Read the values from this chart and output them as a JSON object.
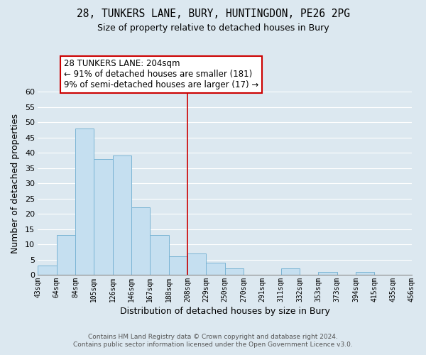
{
  "title": "28, TUNKERS LANE, BURY, HUNTINGDON, PE26 2PG",
  "subtitle": "Size of property relative to detached houses in Bury",
  "xlabel": "Distribution of detached houses by size in Bury",
  "ylabel": "Number of detached properties",
  "bin_labels": [
    "43sqm",
    "64sqm",
    "84sqm",
    "105sqm",
    "126sqm",
    "146sqm",
    "167sqm",
    "188sqm",
    "208sqm",
    "229sqm",
    "250sqm",
    "270sqm",
    "291sqm",
    "311sqm",
    "332sqm",
    "353sqm",
    "373sqm",
    "394sqm",
    "415sqm",
    "435sqm",
    "456sqm"
  ],
  "bar_values": [
    3,
    13,
    48,
    38,
    39,
    22,
    13,
    6,
    7,
    4,
    2,
    0,
    0,
    2,
    0,
    1,
    0,
    1,
    0,
    0
  ],
  "bar_color": "#c5dff0",
  "bar_edge_color": "#7ab4d4",
  "ylim": [
    0,
    60
  ],
  "yticks": [
    0,
    5,
    10,
    15,
    20,
    25,
    30,
    35,
    40,
    45,
    50,
    55,
    60
  ],
  "vline_index": 8,
  "vline_color": "#cc0000",
  "annotation_line1": "28 TUNKERS LANE: 204sqm",
  "annotation_line2": "← 91% of detached houses are smaller (181)",
  "annotation_line3": "9% of semi-detached houses are larger (17) →",
  "footer_line1": "Contains HM Land Registry data © Crown copyright and database right 2024.",
  "footer_line2": "Contains public sector information licensed under the Open Government Licence v3.0.",
  "background_color": "#dce8f0",
  "plot_bg_color": "#dce8f0",
  "grid_color": "#ffffff"
}
